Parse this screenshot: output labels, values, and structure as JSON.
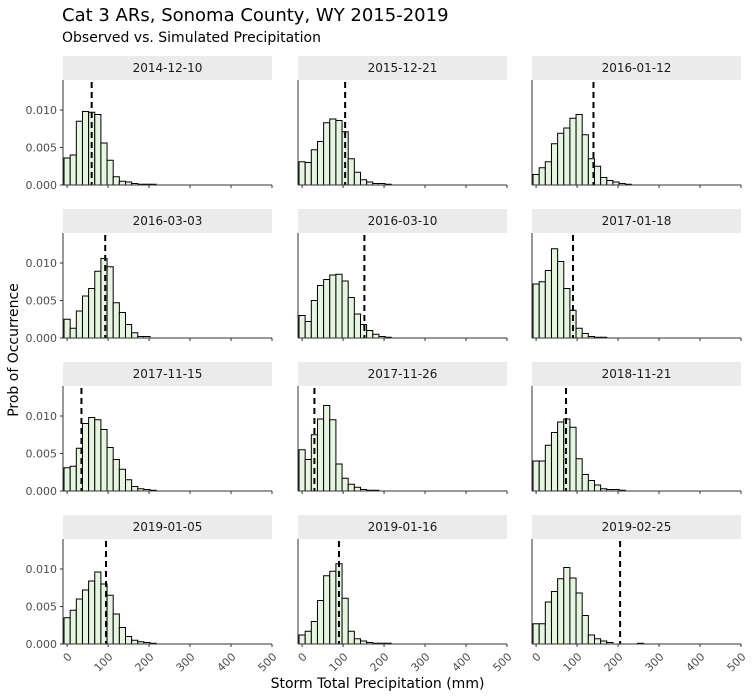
{
  "title": "Cat 3 ARs, Sonoma County, WY 2015-2019",
  "subtitle": "Observed vs. Simulated Precipitation",
  "chart_data": {
    "type": "bar",
    "xlabel": "Storm Total Precipitation (mm)",
    "ylabel": "Prob of Occurrence",
    "xlim": [
      -10,
      500
    ],
    "ylim": [
      0,
      0.014
    ],
    "xticks": [
      0,
      100,
      200,
      300,
      400,
      500
    ],
    "yticks": [
      "0.000",
      "0.005",
      "0.010"
    ],
    "bin_width": 15,
    "bin_starts": [
      -7.5,
      7.5,
      22.5,
      37.5,
      52.5,
      67.5,
      82.5,
      97.5,
      112.5,
      127.5,
      142.5,
      157.5,
      172.5,
      187.5,
      202.5,
      217.5,
      232.5,
      247.5,
      262.5,
      277.5
    ],
    "panels": [
      {
        "label": "2014-12-10",
        "observed": 60,
        "density": [
          0.0036,
          0.004,
          0.0085,
          0.0098,
          0.0097,
          0.0094,
          0.0056,
          0.0033,
          0.0011,
          0.0005,
          0.0004,
          0.0002,
          0.0001,
          0.0001,
          0.0001,
          0,
          0,
          0,
          0,
          0
        ]
      },
      {
        "label": "2015-12-21",
        "observed": 105,
        "density": [
          0.0031,
          0.003,
          0.0047,
          0.0058,
          0.0083,
          0.0088,
          0.0086,
          0.0071,
          0.0035,
          0.0017,
          0.0007,
          0.0004,
          0.0002,
          0.0002,
          0.0001,
          0,
          0,
          0,
          0,
          0
        ]
      },
      {
        "label": "2016-01-12",
        "observed": 140,
        "density": [
          0.0014,
          0.0023,
          0.0031,
          0.0055,
          0.0069,
          0.0076,
          0.0089,
          0.0094,
          0.0067,
          0.0035,
          0.0025,
          0.001,
          0.0006,
          0.0004,
          0.0002,
          0.0001,
          0,
          0,
          0,
          0
        ]
      },
      {
        "label": "2016-03-03",
        "observed": 93,
        "density": [
          0.0025,
          0.0013,
          0.0036,
          0.0056,
          0.0066,
          0.0089,
          0.0106,
          0.0095,
          0.0047,
          0.0034,
          0.0018,
          0.0007,
          0.0002,
          0.0002,
          0,
          0,
          0,
          0,
          0,
          0
        ]
      },
      {
        "label": "2016-03-10",
        "observed": 152,
        "density": [
          0.003,
          0.0022,
          0.005,
          0.007,
          0.0078,
          0.0084,
          0.0085,
          0.0076,
          0.0054,
          0.0032,
          0.0018,
          0.001,
          0.0005,
          0.0002,
          0.0001,
          0,
          0,
          0,
          0,
          0
        ]
      },
      {
        "label": "2017-01-18",
        "observed": 90,
        "density": [
          0.0072,
          0.0075,
          0.009,
          0.0119,
          0.0102,
          0.0066,
          0.0037,
          0.0013,
          0.0006,
          0.0002,
          0.0001,
          0.0001,
          0,
          0,
          0,
          0,
          0,
          0,
          0,
          0
        ]
      },
      {
        "label": "2017-11-15",
        "observed": 35,
        "density": [
          0.0031,
          0.0033,
          0.0057,
          0.009,
          0.0098,
          0.0095,
          0.0082,
          0.0058,
          0.0042,
          0.0029,
          0.0015,
          0.0006,
          0.0003,
          0.0002,
          0.0001,
          0,
          0,
          0,
          0,
          0
        ]
      },
      {
        "label": "2017-11-26",
        "observed": 30,
        "density": [
          0.0055,
          0.0042,
          0.0075,
          0.0096,
          0.0114,
          0.0095,
          0.0036,
          0.0017,
          0.0009,
          0.0005,
          0.0002,
          0.0001,
          0.0001,
          0,
          0,
          0,
          0,
          0,
          0,
          0
        ]
      },
      {
        "label": "2018-11-21",
        "observed": 73,
        "density": [
          0.004,
          0.004,
          0.0061,
          0.0078,
          0.0092,
          0.0096,
          0.0085,
          0.0043,
          0.0022,
          0.0014,
          0.0008,
          0.0003,
          0.0002,
          0.0002,
          0.0001,
          0,
          0,
          0,
          0,
          0
        ]
      },
      {
        "label": "2019-01-05",
        "observed": 95,
        "density": [
          0.0035,
          0.0045,
          0.006,
          0.0072,
          0.0084,
          0.0096,
          0.008,
          0.0065,
          0.004,
          0.0022,
          0.001,
          0.0005,
          0.0003,
          0.0002,
          0.0001,
          0,
          0,
          0,
          0,
          0
        ]
      },
      {
        "label": "2019-01-16",
        "observed": 90,
        "density": [
          0.0012,
          0.0017,
          0.003,
          0.0058,
          0.0091,
          0.0097,
          0.0107,
          0.0061,
          0.0017,
          0.0007,
          0.0004,
          0.0002,
          0.0001,
          0.0001,
          0.0001,
          0,
          0,
          0,
          0,
          0
        ]
      },
      {
        "label": "2019-02-25",
        "observed": 205,
        "density": [
          0.0027,
          0.0027,
          0.0056,
          0.007,
          0.0087,
          0.0102,
          0.0088,
          0.0068,
          0.0038,
          0.0012,
          0.0007,
          0.0004,
          0.0002,
          0,
          0,
          0,
          0,
          0.0001,
          0,
          0
        ]
      }
    ]
  }
}
